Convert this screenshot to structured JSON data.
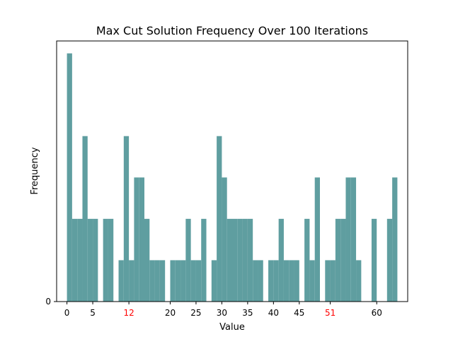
{
  "chart_data": {
    "type": "bar",
    "title": "Max Cut Solution Frequency Over 100 Iterations",
    "xlabel": "Value",
    "ylabel": "Frequency",
    "xlim": [
      -2,
      66
    ],
    "ylim": [
      0,
      6.3
    ],
    "bar_color": "#5f9ea0",
    "x_ticks": [
      {
        "value": 0,
        "label": "0",
        "color": "#000000"
      },
      {
        "value": 5,
        "label": "5",
        "color": "#000000"
      },
      {
        "value": 12,
        "label": "12",
        "color": "#ff0000"
      },
      {
        "value": 20,
        "label": "20",
        "color": "#000000"
      },
      {
        "value": 25,
        "label": "25",
        "color": "#000000"
      },
      {
        "value": 30,
        "label": "30",
        "color": "#000000"
      },
      {
        "value": 35,
        "label": "35",
        "color": "#000000"
      },
      {
        "value": 40,
        "label": "40",
        "color": "#000000"
      },
      {
        "value": 45,
        "label": "45",
        "color": "#000000"
      },
      {
        "value": 51,
        "label": "51",
        "color": "#ff0000"
      },
      {
        "value": 60,
        "label": "60",
        "color": "#000000"
      }
    ],
    "y_ticks": [
      {
        "value": 0,
        "label": "0"
      }
    ],
    "x": [
      0,
      1,
      2,
      3,
      4,
      5,
      6,
      7,
      8,
      9,
      10,
      11,
      12,
      13,
      14,
      15,
      16,
      17,
      18,
      19,
      20,
      21,
      22,
      23,
      24,
      25,
      26,
      27,
      28,
      29,
      30,
      31,
      32,
      33,
      34,
      35,
      36,
      37,
      38,
      39,
      40,
      41,
      42,
      43,
      44,
      45,
      46,
      47,
      48,
      49,
      50,
      51,
      52,
      53,
      54,
      55,
      56,
      57,
      58,
      59,
      60,
      61,
      62,
      63
    ],
    "values": [
      6,
      2,
      2,
      4,
      2,
      2,
      0,
      2,
      2,
      0,
      1,
      4,
      1,
      3,
      3,
      2,
      1,
      1,
      1,
      0,
      1,
      1,
      1,
      2,
      1,
      1,
      2,
      0,
      1,
      4,
      3,
      2,
      2,
      2,
      2,
      2,
      1,
      1,
      0,
      1,
      1,
      2,
      1,
      1,
      1,
      0,
      2,
      1,
      3,
      0,
      1,
      1,
      2,
      2,
      3,
      3,
      1,
      0,
      0,
      2,
      0,
      0,
      2,
      3
    ]
  }
}
